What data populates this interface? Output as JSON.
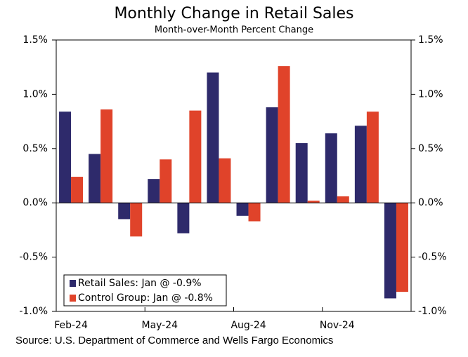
{
  "chart_data": {
    "type": "bar",
    "title": "Monthly Change in Retail Sales",
    "subtitle": "Month-over-Month Percent Change",
    "source": "Source: U.S. Department of Commerce and Wells Fargo Economics",
    "categories": [
      "Feb-24",
      null,
      null,
      "May-24",
      null,
      null,
      "Aug-24",
      null,
      null,
      "Nov-24",
      null,
      null
    ],
    "series": [
      {
        "name": "Retail Sales: Jan @ -0.9%",
        "color": "#2e2a6b",
        "values": [
          0.84,
          0.45,
          -0.15,
          0.22,
          -0.28,
          1.2,
          -0.12,
          0.88,
          0.55,
          0.64,
          0.71,
          -0.88
        ]
      },
      {
        "name": "Control Group: Jan @ -0.8%",
        "color": "#e0432a",
        "values": [
          0.24,
          0.86,
          -0.31,
          0.4,
          0.85,
          0.41,
          -0.17,
          1.26,
          0.02,
          0.06,
          0.84,
          -0.82
        ]
      }
    ],
    "ylim": [
      -1.0,
      1.5
    ],
    "yticks": [
      {
        "value": 1.5,
        "label": "1.5%"
      },
      {
        "value": 1.0,
        "label": "1.0%"
      },
      {
        "value": 0.5,
        "label": "0.5%"
      },
      {
        "value": 0.0,
        "label": "0.0%"
      },
      {
        "value": -0.5,
        "label": "-0.5%"
      },
      {
        "value": -1.0,
        "label": "-1.0%"
      }
    ],
    "y2lim": [
      -1.0,
      1.5
    ],
    "y2ticks": [
      {
        "value": 1.5,
        "label": "1.5%"
      },
      {
        "value": 1.0,
        "label": "1.0%"
      },
      {
        "value": 0.5,
        "label": "0.5%"
      },
      {
        "value": 0.0,
        "label": "0.0%"
      },
      {
        "value": -0.5,
        "label": "-0.5%"
      },
      {
        "value": -1.0,
        "label": "-1.0%"
      }
    ],
    "grid": false,
    "legend": "bottom-left"
  }
}
